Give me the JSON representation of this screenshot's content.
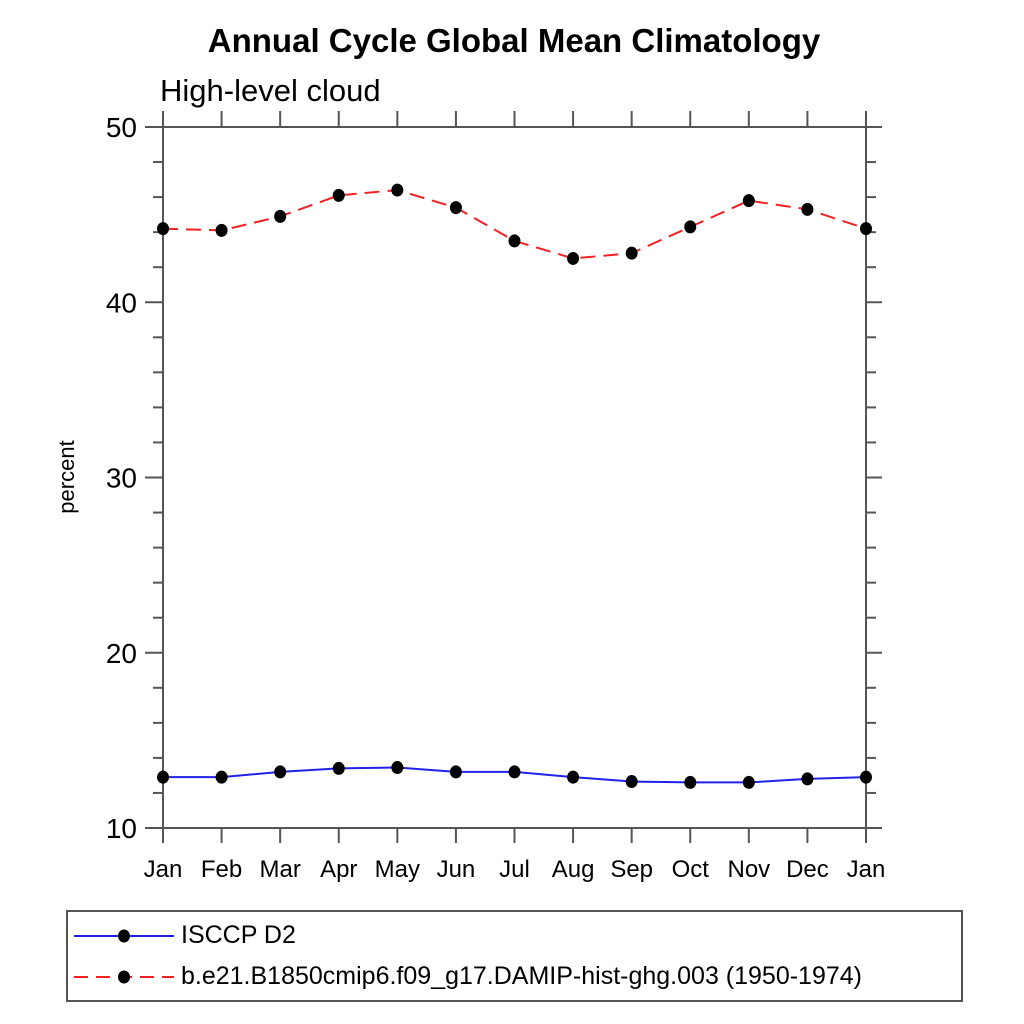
{
  "page": {
    "background": "#ffffff"
  },
  "chart_data": {
    "type": "line",
    "title": "Annual Cycle Global Mean Climatology",
    "subtitle": "High-level cloud",
    "ylabel": "percent",
    "xlabel": "",
    "ylim": [
      10,
      50
    ],
    "ytick_major": [
      10,
      20,
      30,
      40,
      50
    ],
    "ytick_minor_step": 2,
    "grid": "off",
    "axis_color": "#555555",
    "text_color": "#000000",
    "x_categories": [
      "Jan",
      "Feb",
      "Mar",
      "Apr",
      "May",
      "Jun",
      "Jul",
      "Aug",
      "Sep",
      "Oct",
      "Nov",
      "Dec",
      "Jan"
    ],
    "series": [
      {
        "name": "ISCCP D2",
        "color": "#2121e8",
        "line_style": "solid",
        "marker": "filled-circle",
        "marker_color": "#000000",
        "values": [
          12.9,
          12.9,
          13.2,
          13.4,
          13.45,
          13.2,
          13.2,
          12.9,
          12.65,
          12.6,
          12.6,
          12.8,
          12.9
        ]
      },
      {
        "name": "b.e21.B1850cmip6.f09_g17.DAMIP-hist-ghg.003 (1950-1974)",
        "color": "#f32222",
        "line_style": "dashed",
        "marker": "filled-circle",
        "marker_color": "#000000",
        "values": [
          44.2,
          44.1,
          44.9,
          46.1,
          46.4,
          45.4,
          43.5,
          42.5,
          42.8,
          44.3,
          45.8,
          45.3,
          44.2
        ]
      }
    ],
    "legend": {
      "position": "bottom-left",
      "border": true
    }
  }
}
